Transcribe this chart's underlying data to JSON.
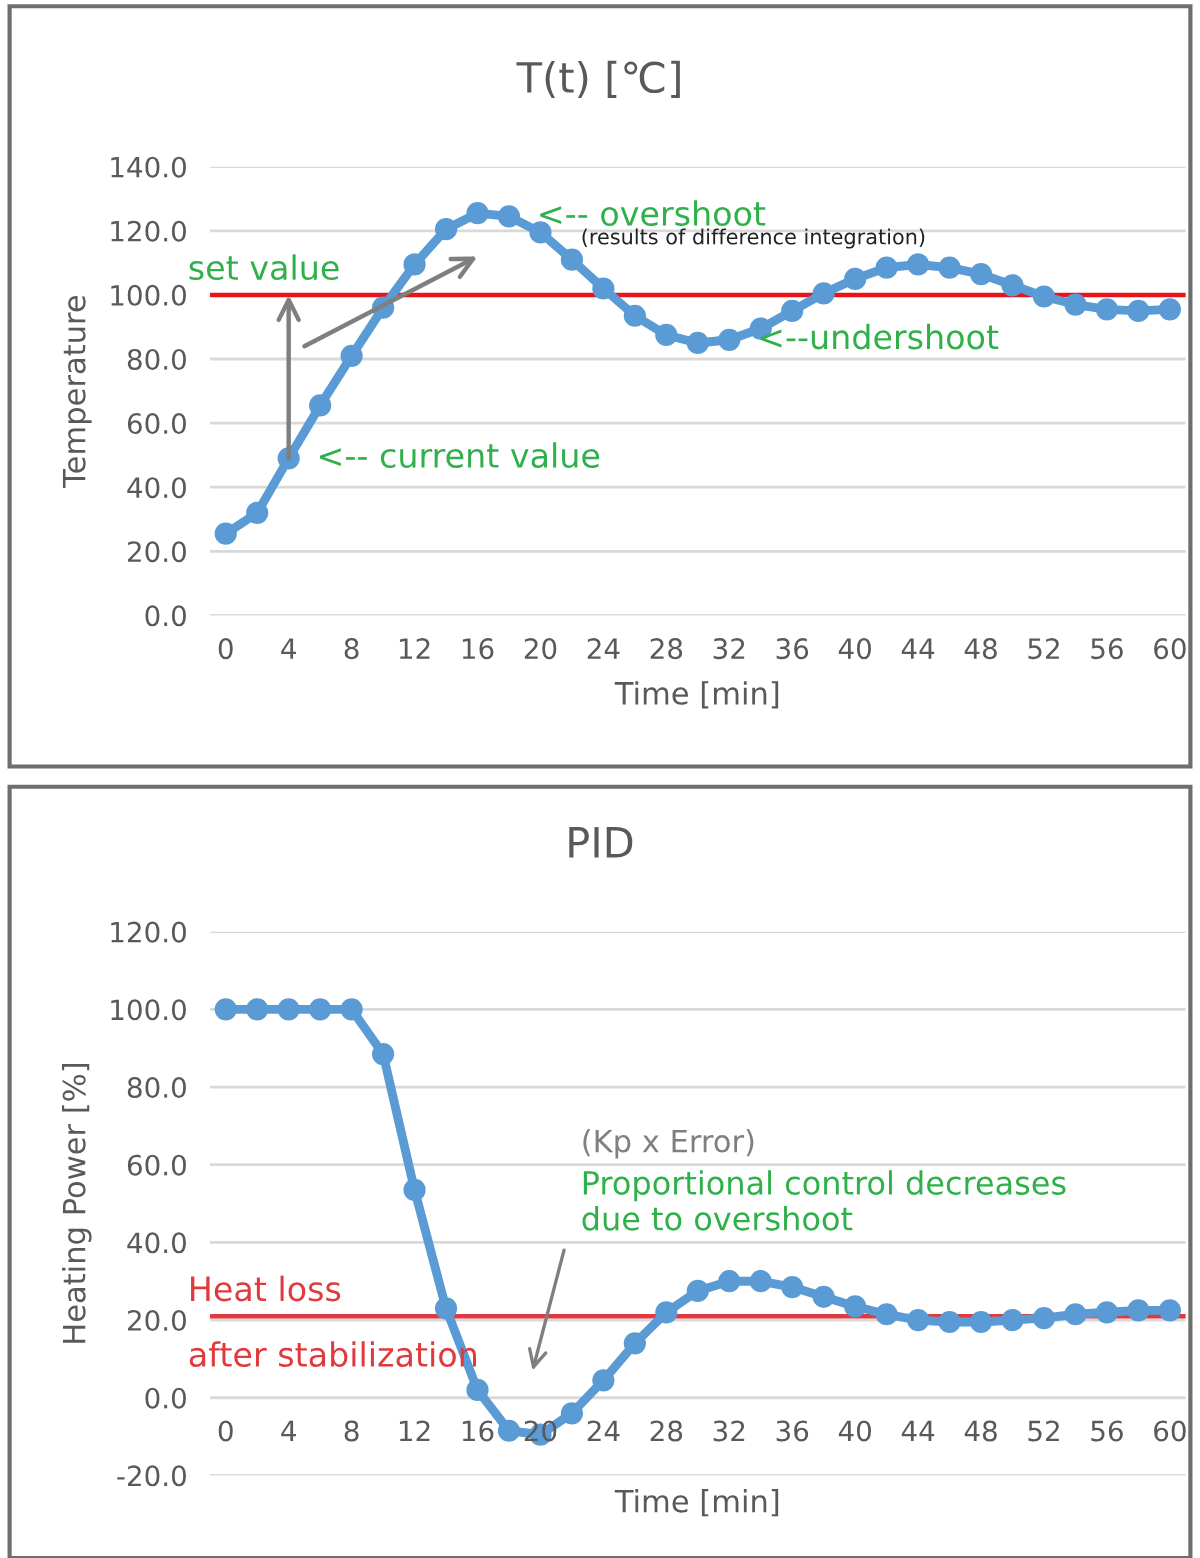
{
  "chart_data": [
    {
      "type": "line",
      "title": "T(t) [℃]",
      "xlabel": "Time [min]",
      "ylabel": "Temperature",
      "x": [
        0,
        2,
        4,
        6,
        8,
        10,
        12,
        14,
        16,
        18,
        20,
        22,
        24,
        26,
        28,
        30,
        32,
        34,
        36,
        38,
        40,
        42,
        44,
        46,
        48,
        50,
        52,
        54,
        56,
        58,
        60
      ],
      "series": [
        {
          "color": "#5b9bd5",
          "values": [
            25.5,
            32,
            49,
            65.5,
            81,
            96,
            109.5,
            120.5,
            125.5,
            124.5,
            119.5,
            111,
            102,
            93.5,
            87.5,
            85,
            86,
            89.5,
            95,
            100.5,
            105,
            108.5,
            109.5,
            108.5,
            106.5,
            103,
            99.5,
            97,
            95.5,
            95,
            95.5
          ]
        }
      ],
      "xlim": [
        -1,
        61
      ],
      "xticks": [
        0,
        4,
        8,
        12,
        16,
        20,
        24,
        28,
        32,
        36,
        40,
        44,
        48,
        52,
        56,
        60
      ],
      "ylim": [
        0,
        140
      ],
      "yticks": [
        {
          "value": 0,
          "label": "0.0"
        },
        {
          "value": 20,
          "label": "20.0"
        },
        {
          "value": 40,
          "label": "40.0"
        },
        {
          "value": 60,
          "label": "60.0"
        },
        {
          "value": 80,
          "label": "80.0"
        },
        {
          "value": 100,
          "label": "100.0"
        },
        {
          "value": 120,
          "label": "120.0"
        },
        {
          "value": 140,
          "label": "140.0"
        }
      ],
      "grid": "y",
      "legend": false,
      "marker": "circle",
      "line_style": "solid",
      "ref_lines": [
        {
          "axis": "y",
          "value": 100,
          "label": "set value",
          "color": "#e8141c"
        }
      ],
      "annotations": [
        {
          "text": "<-- overshoot",
          "x": 18,
          "y": 124.5
        },
        "(results of difference integration)",
        {
          "text": "<-- current value",
          "x": 4,
          "y": 49
        },
        {
          "text": "<--undershoot",
          "x": 32,
          "y": 86
        }
      ]
    },
    {
      "type": "line",
      "title": "PID",
      "xlabel": "Time [min]",
      "ylabel": "Heating Power [%]",
      "x": [
        0,
        2,
        4,
        6,
        8,
        10,
        12,
        14,
        16,
        18,
        20,
        22,
        24,
        26,
        28,
        30,
        32,
        34,
        36,
        38,
        40,
        42,
        44,
        46,
        48,
        50,
        52,
        54,
        56,
        58,
        60
      ],
      "series": [
        {
          "color": "#5b9bd5",
          "values": [
            100,
            100,
            100,
            100,
            100,
            88.5,
            53.5,
            23,
            2,
            -8.5,
            -9.5,
            -4,
            4.5,
            14,
            22,
            27.5,
            30,
            30,
            28.5,
            26,
            23.5,
            21.5,
            20,
            19.5,
            19.5,
            20,
            20.5,
            21.5,
            22,
            22.5,
            22.5
          ]
        }
      ],
      "xlim": [
        -1,
        61
      ],
      "xticks": [
        0,
        4,
        8,
        12,
        16,
        20,
        24,
        28,
        32,
        36,
        40,
        44,
        48,
        52,
        56,
        60
      ],
      "ylim": [
        -20,
        120
      ],
      "yticks": [
        {
          "value": -20,
          "label": "-20.0"
        },
        {
          "value": 0,
          "label": "0.0"
        },
        {
          "value": 20,
          "label": "20.0"
        },
        {
          "value": 40,
          "label": "40.0"
        },
        {
          "value": 60,
          "label": "60.0"
        },
        {
          "value": 80,
          "label": "80.0"
        },
        {
          "value": 100,
          "label": "100.0"
        },
        {
          "value": 120,
          "label": "120.0"
        }
      ],
      "grid": "y",
      "legend": false,
      "marker": "circle",
      "line_style": "solid",
      "ref_lines": [
        {
          "axis": "y",
          "value": 21,
          "label": "Heat loss\nafter stabilization",
          "color": "#e03a3e"
        }
      ],
      "annotations": [
        "(Kp x Error)",
        "Proportional control decreases\ndue to overshoot"
      ]
    }
  ]
}
